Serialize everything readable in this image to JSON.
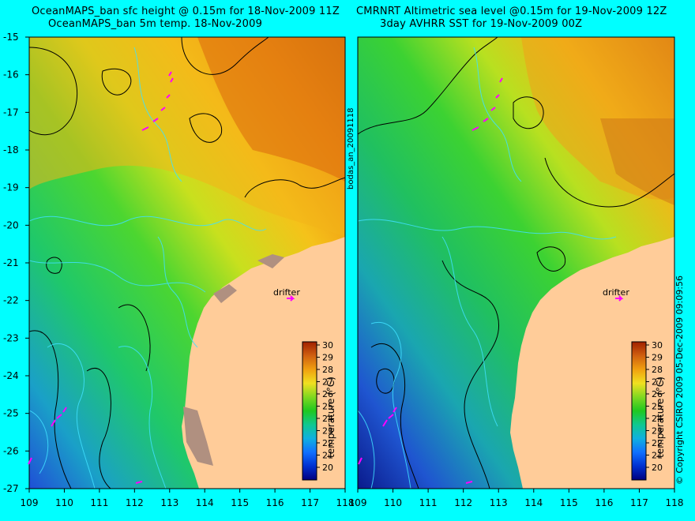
{
  "left_panel": {
    "title_line1": "OceanMAPS_ban sfc height @ 0.15m for 18-Nov-2009 11Z",
    "title_line2": "OceanMAPS_ban 5m temp. 18-Nov-2009",
    "drifter_label": "drifter"
  },
  "right_panel": {
    "title_line1": "CMRNRT Altimetric sea level  @0.15m  for 19-Nov-2009 12Z",
    "title_line2": "3day AVHRR SST for 19-Nov-2009 00Z",
    "drifter_label": "drifter"
  },
  "axes": {
    "x_ticks": [
      "109",
      "110",
      "111",
      "112",
      "113",
      "114",
      "115",
      "116",
      "117",
      "118"
    ],
    "y_ticks": [
      "-15",
      "-16",
      "-17",
      "-18",
      "-19",
      "-20",
      "-21",
      "-22",
      "-23",
      "-24",
      "-25",
      "-26",
      "-27"
    ]
  },
  "colorbar": {
    "label": "temperature (°C)",
    "ticks": [
      "30",
      "29",
      "28",
      "27",
      "26",
      "25",
      "24",
      "23",
      "22",
      "21",
      "20"
    ]
  },
  "side_text": {
    "run_id": "bodas_an_20091118",
    "copyright": "© Copyright CSIRO 2009   05-Dec-2009 09:09:56"
  },
  "colors": {
    "background": "#00ffff",
    "land": "#ffcc99",
    "drifter": "#ff00ff"
  }
}
